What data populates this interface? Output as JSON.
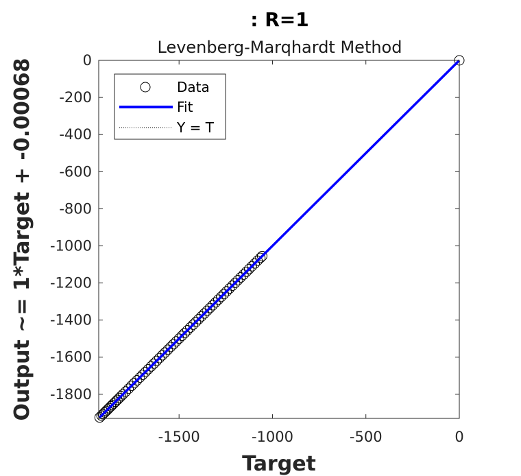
{
  "chart_data": {
    "type": "scatter",
    "title": ": R=1",
    "subtitle": "Levenberg-Marqhardt Method",
    "xlabel": "Target",
    "ylabel": "Output ~= 1*Target + -0.00068",
    "xlim": [
      -1930,
      0
    ],
    "ylim": [
      -1930,
      0
    ],
    "xticks": [
      -1500,
      -1000,
      -500,
      0
    ],
    "yticks": [
      0,
      -200,
      -400,
      -600,
      -800,
      -1000,
      -1200,
      -1400,
      -1600,
      -1800
    ],
    "grid": false,
    "legend": {
      "position": "top-left",
      "entries": [
        "Data",
        "Fit",
        "Y = T"
      ]
    },
    "series": [
      {
        "name": "Data",
        "marker": "circle-open",
        "color": "#000000",
        "x": [
          -1925,
          -1915,
          -1908,
          -1898,
          -1890,
          -1882,
          -1875,
          -1865,
          -1858,
          -1850,
          -1840,
          -1830,
          -1820,
          -1810,
          -1800,
          -1785,
          -1770,
          -1755,
          -1740,
          -1725,
          -1710,
          -1695,
          -1680,
          -1665,
          -1650,
          -1635,
          -1620,
          -1605,
          -1590,
          -1575,
          -1560,
          -1545,
          -1530,
          -1515,
          -1500,
          -1485,
          -1470,
          -1455,
          -1440,
          -1425,
          -1410,
          -1395,
          -1380,
          -1365,
          -1350,
          -1335,
          -1320,
          -1305,
          -1290,
          -1275,
          -1260,
          -1245,
          -1230,
          -1215,
          -1200,
          -1185,
          -1170,
          -1155,
          -1140,
          -1125,
          -1110,
          -1095,
          -1080,
          -1065,
          -1055,
          0
        ],
        "y": [
          -1925,
          -1915,
          -1908,
          -1898,
          -1890,
          -1882,
          -1875,
          -1865,
          -1858,
          -1850,
          -1840,
          -1830,
          -1820,
          -1810,
          -1800,
          -1785,
          -1770,
          -1755,
          -1740,
          -1725,
          -1710,
          -1695,
          -1680,
          -1665,
          -1650,
          -1635,
          -1620,
          -1605,
          -1590,
          -1575,
          -1560,
          -1545,
          -1530,
          -1515,
          -1500,
          -1485,
          -1470,
          -1455,
          -1440,
          -1425,
          -1410,
          -1395,
          -1380,
          -1365,
          -1350,
          -1335,
          -1320,
          -1305,
          -1290,
          -1275,
          -1260,
          -1245,
          -1230,
          -1215,
          -1200,
          -1185,
          -1170,
          -1155,
          -1140,
          -1125,
          -1110,
          -1095,
          -1080,
          -1065,
          -1055,
          0
        ]
      },
      {
        "name": "Fit",
        "style": "solid",
        "color": "#0000ff",
        "x": [
          -1925,
          0
        ],
        "y": [
          -1925,
          0
        ]
      },
      {
        "name": "Y = T",
        "style": "dotted",
        "color": "#000000",
        "x": [
          -1925,
          0
        ],
        "y": [
          -1925,
          0
        ]
      }
    ]
  }
}
